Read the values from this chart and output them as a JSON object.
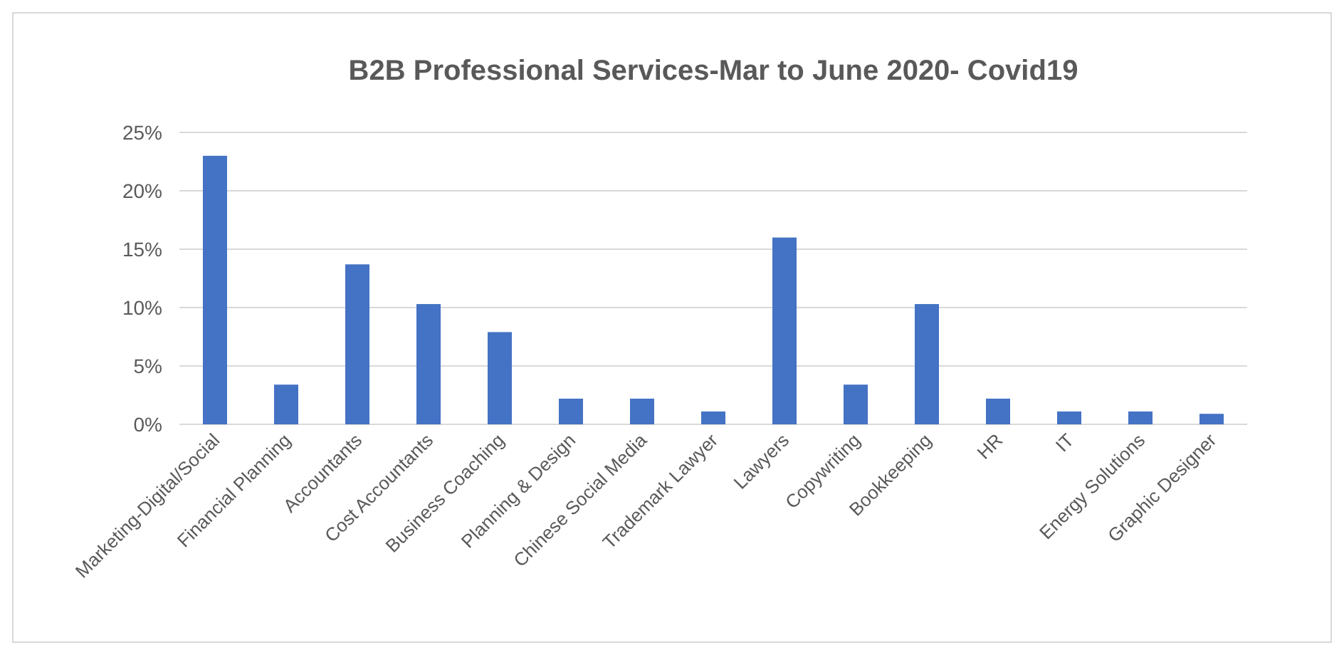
{
  "chart_data": {
    "type": "bar",
    "title": "B2B Professional Services-Mar to June 2020- Covid19",
    "categories": [
      "Marketing-Digital/Social",
      "Financial Planning",
      "Accountants",
      "Cost Accountants",
      "Business Coaching",
      "Planning & Design",
      "Chinese Social Media",
      "Trademark Lawyer",
      "Lawyers",
      "Copywriting",
      "Bookkeeping",
      "HR",
      "IT",
      "Energy Solutions",
      "Graphic Designer"
    ],
    "values": [
      23.0,
      3.4,
      13.7,
      10.3,
      7.9,
      2.2,
      2.2,
      1.1,
      16.0,
      3.4,
      10.3,
      2.2,
      1.1,
      1.1,
      0.9
    ],
    "color": "#4472c4",
    "ylim": [
      0,
      25
    ],
    "yticks": [
      {
        "value": 0,
        "label": "0%"
      },
      {
        "value": 5,
        "label": "5%"
      },
      {
        "value": 10,
        "label": "10%"
      },
      {
        "value": 15,
        "label": "15%"
      },
      {
        "value": 20,
        "label": "20%"
      },
      {
        "value": 25,
        "label": "25%"
      }
    ],
    "grid": "y"
  }
}
